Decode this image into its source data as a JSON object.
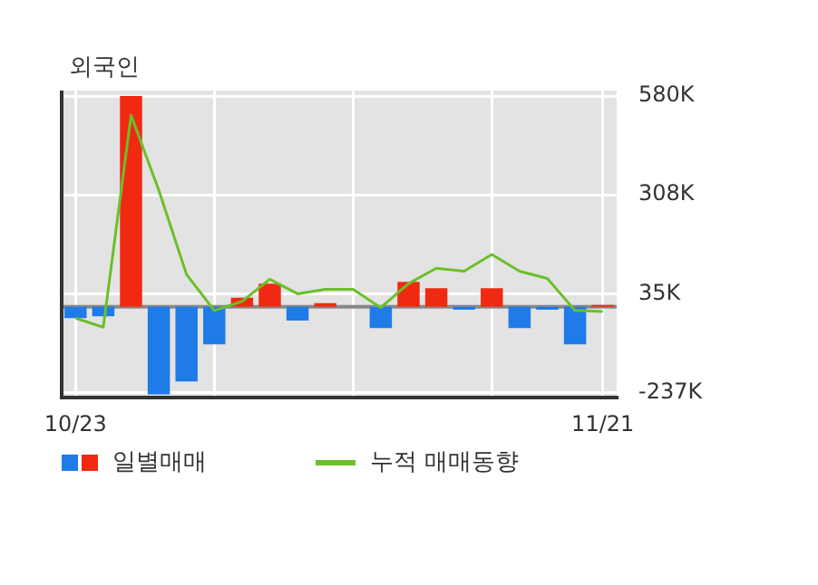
{
  "chart_data": {
    "type": "bar",
    "title": "외국인",
    "categories": [
      "10/23",
      null,
      null,
      null,
      null,
      null,
      null,
      null,
      null,
      null,
      null,
      null,
      null,
      null,
      null,
      null,
      null,
      null,
      null,
      "11/21"
    ],
    "series": [
      {
        "name": "일별매매",
        "colors": [
          "#1e7be8",
          "#1e7be8",
          "#f02a12",
          "#1e7be8",
          "#1e7be8",
          "#1e7be8",
          "#f02a12",
          "#f02a12",
          "#1e7be8",
          "#f02a12",
          "#f02a12",
          "#1e7be8",
          "#f02a12",
          "#f02a12",
          "#1e7be8",
          "#f02a12",
          "#1e7be8",
          "#1e7be8",
          "#1e7be8",
          "#f02a12"
        ],
        "values": [
          -31,
          -26,
          580,
          -241,
          -205,
          -103,
          25,
          64,
          -38,
          10,
          0,
          -58,
          69,
          51,
          -8,
          51,
          -58,
          -8,
          -103,
          5
        ]
      },
      {
        "type": "line",
        "name": "누적 매매동향",
        "color": "#6cbf2a",
        "values": [
          -31,
          -56,
          527,
          321,
          89,
          -10,
          15,
          76,
          36,
          48,
          48,
          -2,
          64,
          106,
          98,
          144,
          98,
          78,
          -10,
          -13
        ]
      }
    ],
    "ylim": [
      -250,
      595
    ],
    "yticks": [
      {
        "value": 580,
        "label": "580K"
      },
      {
        "value": 308,
        "label": "308K"
      },
      {
        "value": 35,
        "label": "35K"
      },
      {
        "value": -237,
        "label": "-237K"
      }
    ],
    "ref_lines": [
      {
        "axis": "y",
        "value": 0,
        "color": "#888888"
      }
    ],
    "grid": true,
    "legend": "bottom",
    "marker": "none",
    "line_style": "solid"
  }
}
